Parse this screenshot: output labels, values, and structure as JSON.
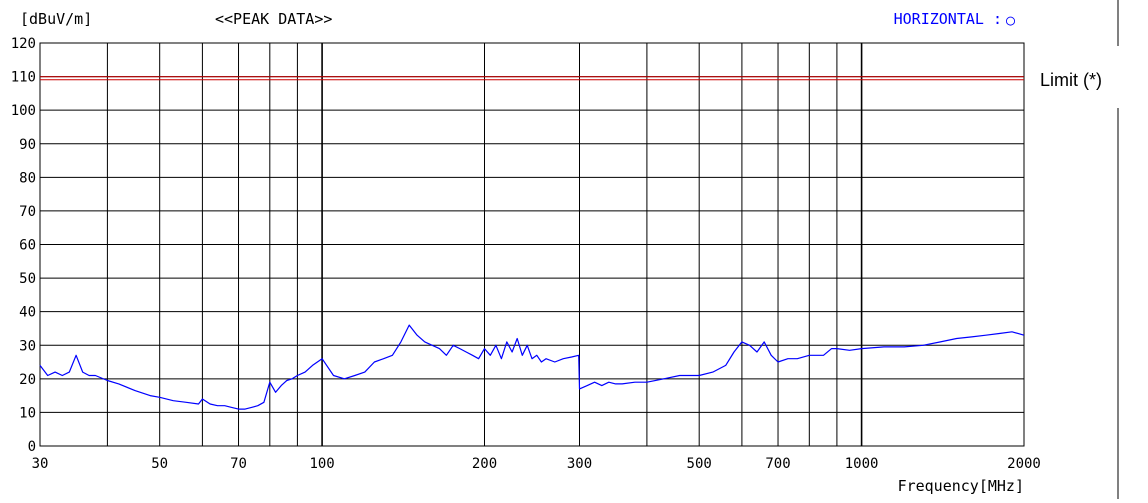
{
  "header": {
    "y_unit": "[dBuV/m]",
    "mode": "<<PEAK DATA>>",
    "polarization": "HORIZONTAL : ",
    "polarization_marker": "○"
  },
  "colors": {
    "trace": "#0000ff",
    "limit": "#cc0000",
    "grid": "#000000",
    "polarization_text": "#0000ff"
  },
  "chart_data": {
    "type": "line",
    "xlabel": "Frequency[MHz]",
    "ylabel": "[dBuV/m]",
    "x_scale": "log",
    "xlim": [
      30,
      2000
    ],
    "ylim": [
      0,
      120
    ],
    "grid": true,
    "x_ticks": [
      30,
      50,
      70,
      100,
      200,
      300,
      500,
      700,
      1000,
      2000
    ],
    "x_gridlines": [
      40,
      50,
      60,
      70,
      80,
      90,
      100,
      200,
      300,
      400,
      500,
      600,
      700,
      800,
      900,
      1000
    ],
    "y_ticks": [
      0,
      10,
      20,
      30,
      40,
      50,
      60,
      70,
      80,
      90,
      100,
      110,
      120
    ],
    "limit": {
      "label": "Limit (*)",
      "value": 109.5
    },
    "series": [
      {
        "color": "#0000ff",
        "x": [
          30,
          31,
          32,
          33,
          34,
          35,
          36,
          37,
          38,
          40,
          42,
          45,
          48,
          50,
          53,
          56,
          59,
          60,
          62,
          64,
          66,
          68,
          70,
          72,
          74,
          76,
          78,
          80,
          82,
          84,
          86,
          88,
          90,
          93,
          96,
          100,
          105,
          110,
          115,
          120,
          125,
          130,
          135,
          140,
          145,
          150,
          155,
          160,
          165,
          170,
          175,
          180,
          185,
          190,
          195,
          200,
          205,
          210,
          215,
          220,
          225,
          230,
          235,
          240,
          245,
          250,
          255,
          260,
          270,
          280,
          290,
          299,
          300,
          310,
          320,
          330,
          340,
          350,
          360,
          380,
          400,
          430,
          460,
          500,
          530,
          560,
          580,
          600,
          620,
          640,
          660,
          680,
          700,
          730,
          760,
          800,
          850,
          880,
          900,
          950,
          1000,
          1100,
          1200,
          1300,
          1400,
          1500,
          1600,
          1700,
          1800,
          1900,
          2000
        ],
        "y": [
          24,
          21,
          22,
          21,
          22,
          27,
          22,
          21,
          21,
          19.5,
          18.5,
          16.5,
          15,
          14.5,
          13.5,
          13,
          12.5,
          14,
          12.5,
          12,
          12,
          11.5,
          11,
          11,
          11.5,
          12,
          13,
          19,
          16,
          18,
          19.5,
          20,
          21,
          22,
          24,
          26,
          21,
          20,
          21,
          22,
          25,
          26,
          27,
          31,
          36,
          33,
          31,
          30,
          29,
          27,
          30,
          29,
          28,
          27,
          26,
          29,
          27,
          30,
          26,
          31,
          28,
          32,
          27,
          30,
          26,
          27,
          25,
          26,
          25,
          26,
          26.5,
          27,
          17,
          18,
          19,
          18,
          19,
          18.5,
          18.5,
          19,
          19,
          20,
          21,
          21,
          22,
          24,
          28,
          31,
          30,
          28,
          31,
          27,
          25,
          26,
          26,
          27,
          27,
          29,
          29,
          28.5,
          29,
          29.5,
          29.5,
          30,
          31,
          32,
          32.5,
          33,
          33.5,
          34,
          33
        ]
      }
    ]
  },
  "side": {
    "limit_label": "Limit (*)"
  }
}
